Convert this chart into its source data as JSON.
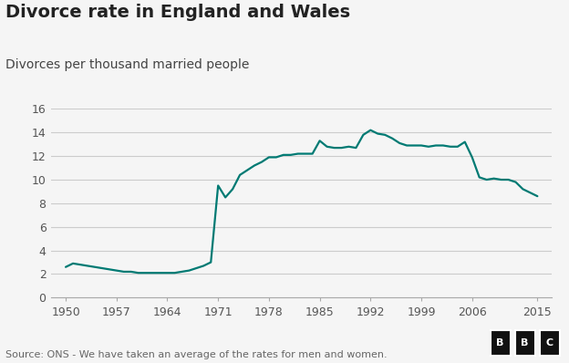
{
  "title": "Divorce rate in England and Wales",
  "subtitle": "Divorces per thousand married people",
  "source": "Source: ONS - We have taken an average of the rates for men and women.",
  "bbc_label": "BBC",
  "line_color": "#007a73",
  "background_color": "#f5f5f5",
  "grid_color": "#cccccc",
  "ylim": [
    0,
    16
  ],
  "yticks": [
    0,
    2,
    4,
    6,
    8,
    10,
    12,
    14,
    16
  ],
  "xticks": [
    1950,
    1957,
    1964,
    1971,
    1978,
    1985,
    1992,
    1999,
    2006,
    2015
  ],
  "xlim": [
    1948,
    2017
  ],
  "years": [
    1950,
    1951,
    1952,
    1953,
    1954,
    1955,
    1956,
    1957,
    1958,
    1959,
    1960,
    1961,
    1962,
    1963,
    1964,
    1965,
    1966,
    1967,
    1968,
    1969,
    1970,
    1971,
    1972,
    1973,
    1974,
    1975,
    1976,
    1977,
    1978,
    1979,
    1980,
    1981,
    1982,
    1983,
    1984,
    1985,
    1986,
    1987,
    1988,
    1989,
    1990,
    1991,
    1992,
    1993,
    1994,
    1995,
    1996,
    1997,
    1998,
    1999,
    2000,
    2001,
    2002,
    2003,
    2004,
    2005,
    2006,
    2007,
    2008,
    2009,
    2010,
    2011,
    2012,
    2013,
    2014,
    2015
  ],
  "values": [
    2.6,
    2.9,
    2.8,
    2.7,
    2.6,
    2.5,
    2.4,
    2.3,
    2.2,
    2.2,
    2.1,
    2.1,
    2.1,
    2.1,
    2.1,
    2.1,
    2.2,
    2.3,
    2.5,
    2.7,
    3.0,
    9.5,
    8.5,
    9.2,
    10.4,
    10.8,
    11.2,
    11.5,
    11.9,
    11.9,
    12.1,
    12.1,
    12.2,
    12.2,
    12.2,
    13.3,
    12.8,
    12.7,
    12.7,
    12.8,
    12.7,
    13.8,
    14.2,
    13.9,
    13.8,
    13.5,
    13.1,
    12.9,
    12.9,
    12.9,
    12.8,
    12.9,
    12.9,
    12.8,
    12.8,
    13.2,
    11.9,
    10.2,
    10.0,
    10.1,
    10.0,
    10.0,
    9.8,
    9.2,
    8.9,
    8.6
  ],
  "title_fontsize": 14,
  "subtitle_fontsize": 10,
  "tick_fontsize": 9,
  "source_fontsize": 8
}
